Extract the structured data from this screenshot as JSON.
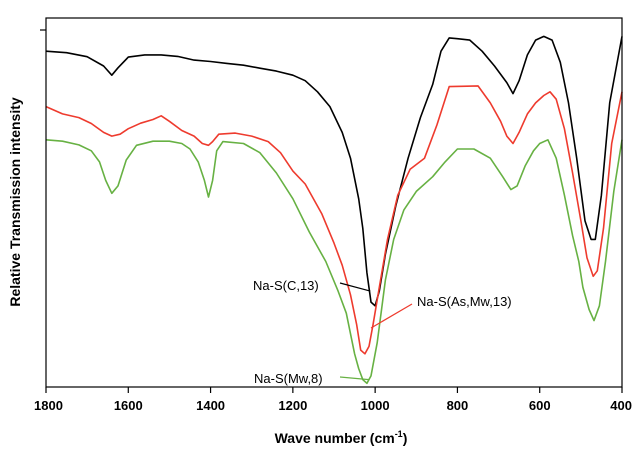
{
  "chart_data": {
    "type": "line",
    "xlabel": "Wave number (cm",
    "xlabel_sup": "-1",
    "xlabel_close": ")",
    "ylabel": "Relative Transmission intensity",
    "xlim": [
      1800,
      400
    ],
    "x_reversed": true,
    "ylim": [
      0,
      100
    ],
    "y_tick_labels": false,
    "grid": false,
    "x_ticks": [
      1800,
      1600,
      1400,
      1200,
      1000,
      800,
      600,
      400
    ],
    "series": [
      {
        "name": "Na-S(C,13)",
        "color": "#000000",
        "points": [
          [
            1800,
            91
          ],
          [
            1750,
            90.6
          ],
          [
            1700,
            89.5
          ],
          [
            1660,
            87
          ],
          [
            1640,
            84.5
          ],
          [
            1625,
            86.5
          ],
          [
            1600,
            89.4
          ],
          [
            1560,
            90
          ],
          [
            1520,
            90
          ],
          [
            1480,
            89.6
          ],
          [
            1440,
            88.6
          ],
          [
            1400,
            88.2
          ],
          [
            1360,
            87.7
          ],
          [
            1320,
            87.2
          ],
          [
            1280,
            86.4
          ],
          [
            1240,
            85.6
          ],
          [
            1200,
            84.5
          ],
          [
            1170,
            83
          ],
          [
            1140,
            80
          ],
          [
            1110,
            76
          ],
          [
            1080,
            69
          ],
          [
            1060,
            62
          ],
          [
            1040,
            51
          ],
          [
            1030,
            43
          ],
          [
            1020,
            31
          ],
          [
            1010,
            23
          ],
          [
            1000,
            22
          ],
          [
            990,
            26
          ],
          [
            975,
            36
          ],
          [
            950,
            49
          ],
          [
            920,
            62
          ],
          [
            890,
            73
          ],
          [
            860,
            82
          ],
          [
            840,
            91
          ],
          [
            820,
            94.6
          ],
          [
            800,
            94.4
          ],
          [
            770,
            94
          ],
          [
            740,
            91
          ],
          [
            710,
            87
          ],
          [
            680,
            82.5
          ],
          [
            665,
            79.5
          ],
          [
            650,
            83
          ],
          [
            630,
            90
          ],
          [
            610,
            94
          ],
          [
            590,
            95
          ],
          [
            570,
            94
          ],
          [
            550,
            88
          ],
          [
            530,
            77
          ],
          [
            510,
            62
          ],
          [
            490,
            45
          ],
          [
            475,
            40
          ],
          [
            465,
            40
          ],
          [
            450,
            52
          ],
          [
            430,
            77
          ],
          [
            400,
            95
          ]
        ]
      },
      {
        "name": "Na-S(As,Mw,13)",
        "color": "#ee3b2e",
        "points": [
          [
            1800,
            76
          ],
          [
            1760,
            74
          ],
          [
            1720,
            73
          ],
          [
            1690,
            71.4
          ],
          [
            1660,
            69
          ],
          [
            1640,
            68
          ],
          [
            1620,
            68.5
          ],
          [
            1600,
            70
          ],
          [
            1570,
            71.5
          ],
          [
            1540,
            72.5
          ],
          [
            1520,
            73.5
          ],
          [
            1500,
            72
          ],
          [
            1470,
            69.5
          ],
          [
            1440,
            68
          ],
          [
            1420,
            66
          ],
          [
            1405,
            65.5
          ],
          [
            1395,
            66.5
          ],
          [
            1380,
            68.5
          ],
          [
            1340,
            68.8
          ],
          [
            1300,
            68
          ],
          [
            1260,
            66.5
          ],
          [
            1230,
            63.5
          ],
          [
            1200,
            58.5
          ],
          [
            1170,
            55
          ],
          [
            1130,
            47
          ],
          [
            1100,
            39
          ],
          [
            1080,
            33
          ],
          [
            1060,
            25
          ],
          [
            1045,
            17
          ],
          [
            1035,
            10
          ],
          [
            1025,
            9
          ],
          [
            1015,
            11
          ],
          [
            1005,
            17
          ],
          [
            990,
            27
          ],
          [
            970,
            40
          ],
          [
            945,
            52
          ],
          [
            915,
            59
          ],
          [
            880,
            62
          ],
          [
            850,
            71
          ],
          [
            820,
            81.4
          ],
          [
            790,
            81.5
          ],
          [
            750,
            81.6
          ],
          [
            720,
            77
          ],
          [
            695,
            72
          ],
          [
            680,
            68
          ],
          [
            665,
            66
          ],
          [
            650,
            69
          ],
          [
            630,
            74
          ],
          [
            610,
            77
          ],
          [
            590,
            79
          ],
          [
            575,
            80
          ],
          [
            560,
            78
          ],
          [
            540,
            70
          ],
          [
            520,
            58
          ],
          [
            500,
            45
          ],
          [
            485,
            35
          ],
          [
            470,
            30
          ],
          [
            460,
            31.5
          ],
          [
            445,
            43
          ],
          [
            425,
            66
          ],
          [
            400,
            80
          ]
        ]
      },
      {
        "name": "Na-S(Mw,8)",
        "color": "#67b143",
        "points": [
          [
            1800,
            67
          ],
          [
            1760,
            66.6
          ],
          [
            1720,
            65.6
          ],
          [
            1690,
            64
          ],
          [
            1670,
            61
          ],
          [
            1655,
            56
          ],
          [
            1640,
            52.5
          ],
          [
            1625,
            54.5
          ],
          [
            1605,
            61.5
          ],
          [
            1580,
            65.5
          ],
          [
            1540,
            66.6
          ],
          [
            1500,
            66.6
          ],
          [
            1470,
            66
          ],
          [
            1450,
            64.5
          ],
          [
            1430,
            61
          ],
          [
            1415,
            56
          ],
          [
            1405,
            51.5
          ],
          [
            1395,
            56
          ],
          [
            1385,
            64
          ],
          [
            1370,
            66.5
          ],
          [
            1320,
            66
          ],
          [
            1280,
            63.5
          ],
          [
            1240,
            58
          ],
          [
            1200,
            51
          ],
          [
            1160,
            42
          ],
          [
            1120,
            34
          ],
          [
            1090,
            26
          ],
          [
            1070,
            20
          ],
          [
            1050,
            9
          ],
          [
            1040,
            5
          ],
          [
            1030,
            2
          ],
          [
            1020,
            1
          ],
          [
            1010,
            3
          ],
          [
            995,
            12
          ],
          [
            975,
            29
          ],
          [
            955,
            40
          ],
          [
            930,
            48
          ],
          [
            900,
            53
          ],
          [
            860,
            57
          ],
          [
            830,
            61
          ],
          [
            800,
            64.5
          ],
          [
            760,
            64.5
          ],
          [
            720,
            62
          ],
          [
            690,
            57
          ],
          [
            670,
            53.5
          ],
          [
            655,
            54.5
          ],
          [
            635,
            60
          ],
          [
            615,
            64
          ],
          [
            600,
            66
          ],
          [
            580,
            67
          ],
          [
            560,
            62
          ],
          [
            540,
            52
          ],
          [
            520,
            41
          ],
          [
            505,
            34
          ],
          [
            495,
            27
          ],
          [
            480,
            21
          ],
          [
            468,
            18
          ],
          [
            455,
            22
          ],
          [
            440,
            34
          ],
          [
            420,
            53
          ],
          [
            400,
            67
          ]
        ]
      }
    ],
    "annotations": [
      {
        "text": "Na-S(C,13)",
        "series": 0,
        "point": [
          1012,
          26
        ]
      },
      {
        "text": "Na-S(As,Mw,13)",
        "series": 1,
        "point": [
          1010,
          16
        ]
      },
      {
        "text": "Na-S(Mw,8)",
        "series": 2,
        "point": [
          1015,
          2
        ]
      }
    ]
  }
}
